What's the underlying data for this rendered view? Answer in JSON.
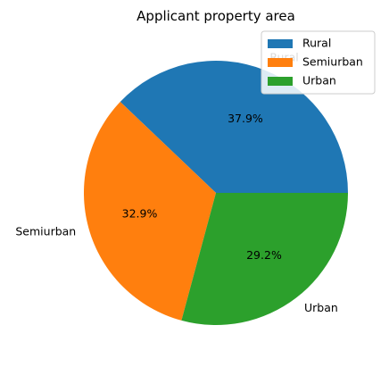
{
  "chart_data": {
    "type": "pie",
    "title": "Applicant property area",
    "categories": [
      "Rural",
      "Semiurban",
      "Urban"
    ],
    "values": [
      37.9,
      32.9,
      29.2
    ],
    "value_labels": [
      "37.9%",
      "32.9%",
      "29.2%"
    ],
    "colors": [
      "#1f77b4",
      "#ff7f0e",
      "#2ca02c"
    ],
    "start_angle_deg": 0,
    "direction": "counterclockwise",
    "legend": {
      "placement": "top-right",
      "entries": [
        "Rural",
        "Semiurban",
        "Urban"
      ]
    }
  }
}
